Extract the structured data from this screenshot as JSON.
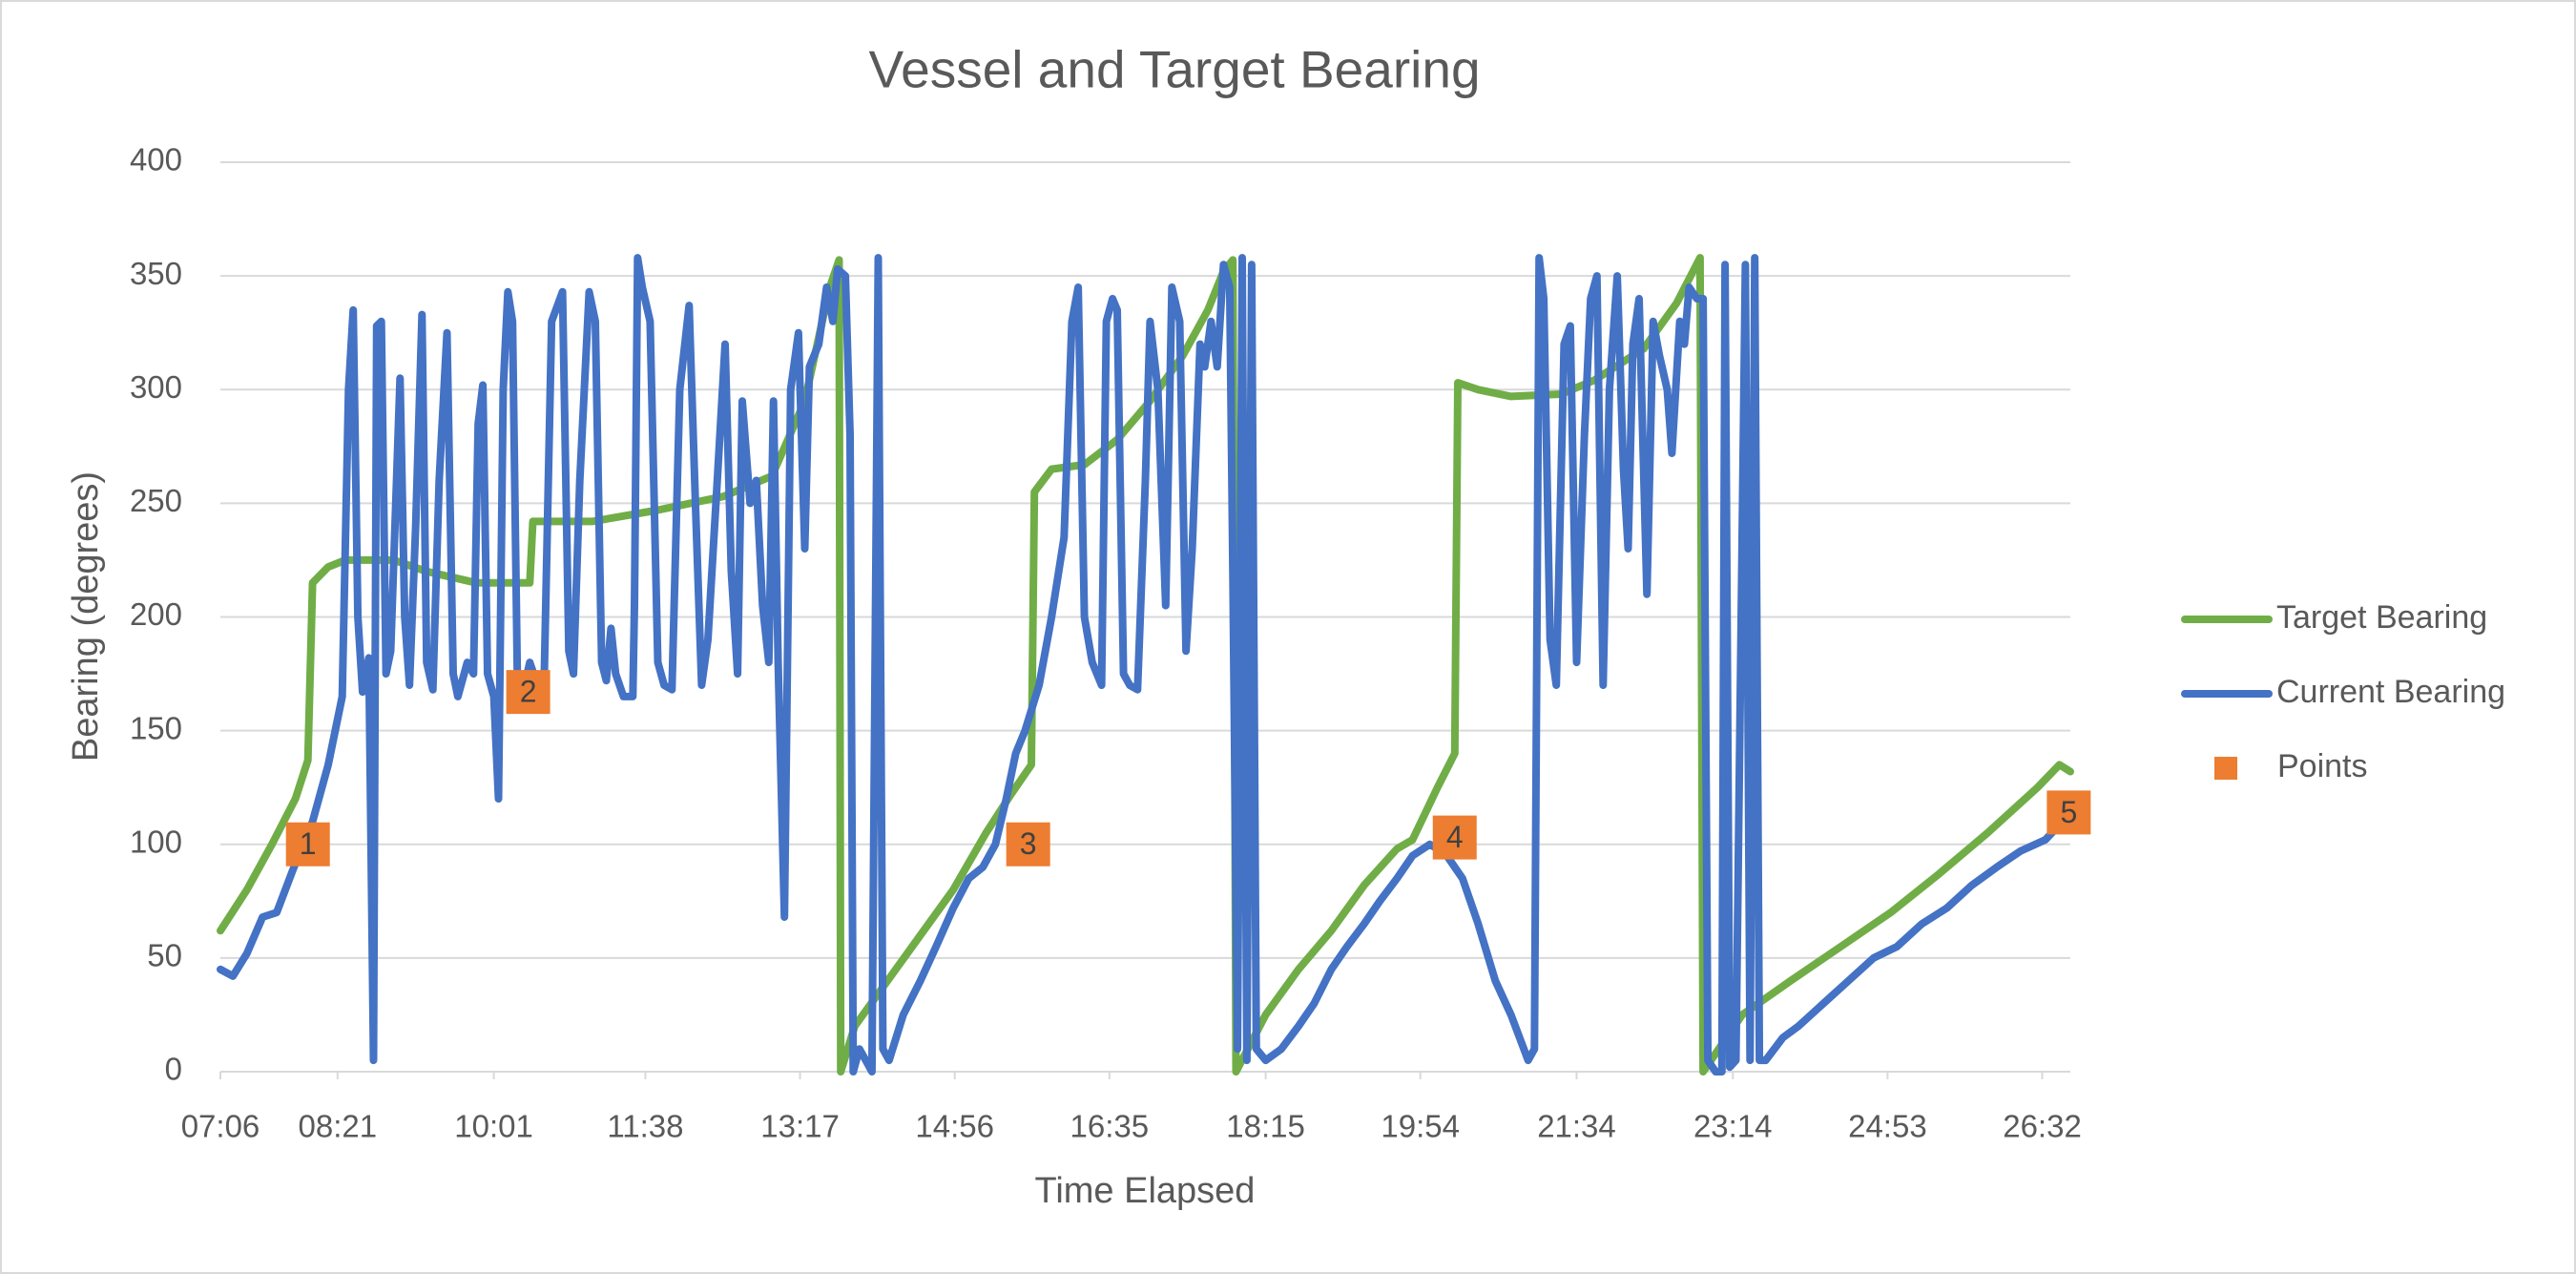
{
  "chart_data": {
    "type": "line",
    "title": "Vessel and Target Bearing",
    "x_label": "Time Elapsed",
    "y_label": "Bearing (degrees)",
    "xlim": [
      426,
      1610
    ],
    "xticks": [
      {
        "value": 426,
        "label": "07:06"
      },
      {
        "value": 501,
        "label": "08:21"
      },
      {
        "value": 601,
        "label": "10:01"
      },
      {
        "value": 698,
        "label": "11:38"
      },
      {
        "value": 797,
        "label": "13:17"
      },
      {
        "value": 896,
        "label": "14:56"
      },
      {
        "value": 995,
        "label": "16:35"
      },
      {
        "value": 1095,
        "label": "18:15"
      },
      {
        "value": 1194,
        "label": "19:54"
      },
      {
        "value": 1294,
        "label": "21:34"
      },
      {
        "value": 1394,
        "label": "23:14"
      },
      {
        "value": 1493,
        "label": "24:53"
      },
      {
        "value": 1592,
        "label": "26:32"
      }
    ],
    "ylim": [
      0,
      400
    ],
    "yticks": [
      0,
      50,
      100,
      150,
      200,
      250,
      300,
      350,
      400
    ],
    "grid": true,
    "legend": "right",
    "series": [
      {
        "name": "Target Bearing",
        "color": "#70ad47",
        "x": [
          426,
          443,
          459,
          474,
          482,
          485,
          495,
          506,
          537,
          558,
          590,
          624,
          626,
          664,
          706,
          748,
          779,
          800,
          816,
          822,
          823,
          832,
          853,
          874,
          895,
          916,
          932,
          945,
          947,
          958,
          979,
          1000,
          1021,
          1042,
          1058,
          1068,
          1074,
          1076,
          1095,
          1116,
          1137,
          1158,
          1179,
          1189,
          1205,
          1216,
          1218,
          1231,
          1252,
          1284,
          1305,
          1337,
          1358,
          1373,
          1375,
          1400,
          1431,
          1463,
          1495,
          1526,
          1557,
          1589,
          1603,
          1610
        ],
        "values": [
          62,
          80,
          100,
          120,
          137,
          215,
          222,
          225,
          225,
          220,
          215,
          215,
          242,
          242,
          247,
          253,
          262,
          295,
          345,
          357,
          0,
          20,
          40,
          60,
          80,
          105,
          122,
          135,
          255,
          265,
          267,
          278,
          295,
          315,
          335,
          352,
          357,
          0,
          25,
          45,
          62,
          82,
          98,
          102,
          125,
          140,
          303,
          300,
          297,
          298,
          304,
          318,
          338,
          358,
          0,
          25,
          40,
          55,
          70,
          87,
          105,
          125,
          135,
          132
        ]
      },
      {
        "name": "Current Bearing",
        "color": "#4472c4",
        "x": [
          426,
          434,
          443,
          453,
          462,
          472,
          485,
          495,
          504,
          508,
          511,
          514,
          517,
          521,
          524,
          526,
          529,
          532,
          535,
          541,
          544,
          547,
          551,
          555,
          558,
          562,
          566,
          571,
          575,
          578,
          584,
          588,
          591,
          594,
          597,
          601,
          604,
          607,
          610,
          613,
          616,
          619,
          624,
          629,
          633,
          638,
          645,
          649,
          652,
          656,
          662,
          666,
          670,
          673,
          676,
          679,
          684,
          690,
          691,
          693,
          696,
          701,
          706,
          710,
          715,
          720,
          726,
          730,
          734,
          738,
          744,
          749,
          753,
          757,
          760,
          765,
          769,
          773,
          777,
          780,
          783,
          787,
          791,
          796,
          800,
          803,
          809,
          814,
          818,
          821,
          826,
          829,
          831,
          835,
          839,
          843,
          847,
          850,
          854,
          863,
          874,
          884,
          895,
          905,
          914,
          922,
          929,
          935,
          941,
          950,
          958,
          966,
          971,
          975,
          979,
          984,
          990,
          993,
          997,
          1000,
          1004,
          1008,
          1013,
          1018,
          1021,
          1026,
          1031,
          1035,
          1040,
          1044,
          1048,
          1053,
          1056,
          1060,
          1064,
          1068,
          1072,
          1074,
          1077,
          1080,
          1083,
          1086,
          1089,
          1095,
          1105,
          1116,
          1126,
          1137,
          1147,
          1158,
          1168,
          1179,
          1189,
          1200,
          1210,
          1221,
          1231,
          1242,
          1252,
          1263,
          1267,
          1270,
          1273,
          1277,
          1281,
          1286,
          1290,
          1294,
          1299,
          1303,
          1307,
          1311,
          1315,
          1320,
          1324,
          1327,
          1330,
          1334,
          1339,
          1343,
          1347,
          1352,
          1355,
          1360,
          1363,
          1366,
          1371,
          1375,
          1378,
          1383,
          1387,
          1389,
          1392,
          1396,
          1402,
          1405,
          1408,
          1411,
          1415,
          1426,
          1436,
          1452,
          1468,
          1484,
          1499,
          1515,
          1531,
          1547,
          1563,
          1578,
          1594,
          1605
        ],
        "values": [
          45,
          42,
          52,
          68,
          70,
          88,
          110,
          135,
          165,
          300,
          335,
          200,
          167,
          182,
          5,
          328,
          330,
          175,
          185,
          305,
          200,
          170,
          240,
          333,
          180,
          168,
          260,
          325,
          175,
          165,
          180,
          175,
          285,
          302,
          175,
          165,
          120,
          300,
          343,
          330,
          175,
          165,
          180,
          170,
          165,
          330,
          343,
          185,
          175,
          260,
          343,
          330,
          180,
          172,
          195,
          175,
          165,
          165,
          205,
          358,
          345,
          330,
          180,
          170,
          168,
          300,
          337,
          250,
          170,
          190,
          260,
          320,
          220,
          175,
          295,
          250,
          260,
          205,
          180,
          295,
          180,
          68,
          300,
          325,
          230,
          310,
          320,
          345,
          330,
          353,
          350,
          280,
          0,
          10,
          5,
          0,
          358,
          10,
          5,
          25,
          40,
          55,
          72,
          85,
          90,
          100,
          120,
          140,
          150,
          170,
          200,
          235,
          330,
          345,
          200,
          180,
          170,
          330,
          340,
          335,
          175,
          170,
          168,
          260,
          330,
          300,
          205,
          345,
          330,
          185,
          230,
          320,
          310,
          330,
          310,
          355,
          345,
          220,
          10,
          358,
          5,
          355,
          10,
          5,
          10,
          20,
          30,
          45,
          55,
          65,
          75,
          85,
          95,
          100,
          96,
          85,
          65,
          40,
          25,
          5,
          10,
          358,
          340,
          190,
          170,
          320,
          328,
          180,
          280,
          340,
          350,
          170,
          300,
          350,
          265,
          230,
          320,
          340,
          210,
          330,
          315,
          300,
          272,
          330,
          320,
          345,
          340,
          340,
          5,
          0,
          0,
          355,
          2,
          5,
          355,
          5,
          358,
          5,
          5,
          15,
          20,
          30,
          40,
          50,
          55,
          65,
          72,
          82,
          90,
          97,
          102,
          110
        ]
      },
      {
        "name": "Points",
        "color": "#ed7d31",
        "marker": "square",
        "x": [
          482,
          623,
          943,
          1216,
          1609
        ],
        "values": [
          100,
          167,
          100,
          103,
          114
        ],
        "labels": [
          "1",
          "2",
          "3",
          "4",
          "5"
        ]
      }
    ]
  }
}
